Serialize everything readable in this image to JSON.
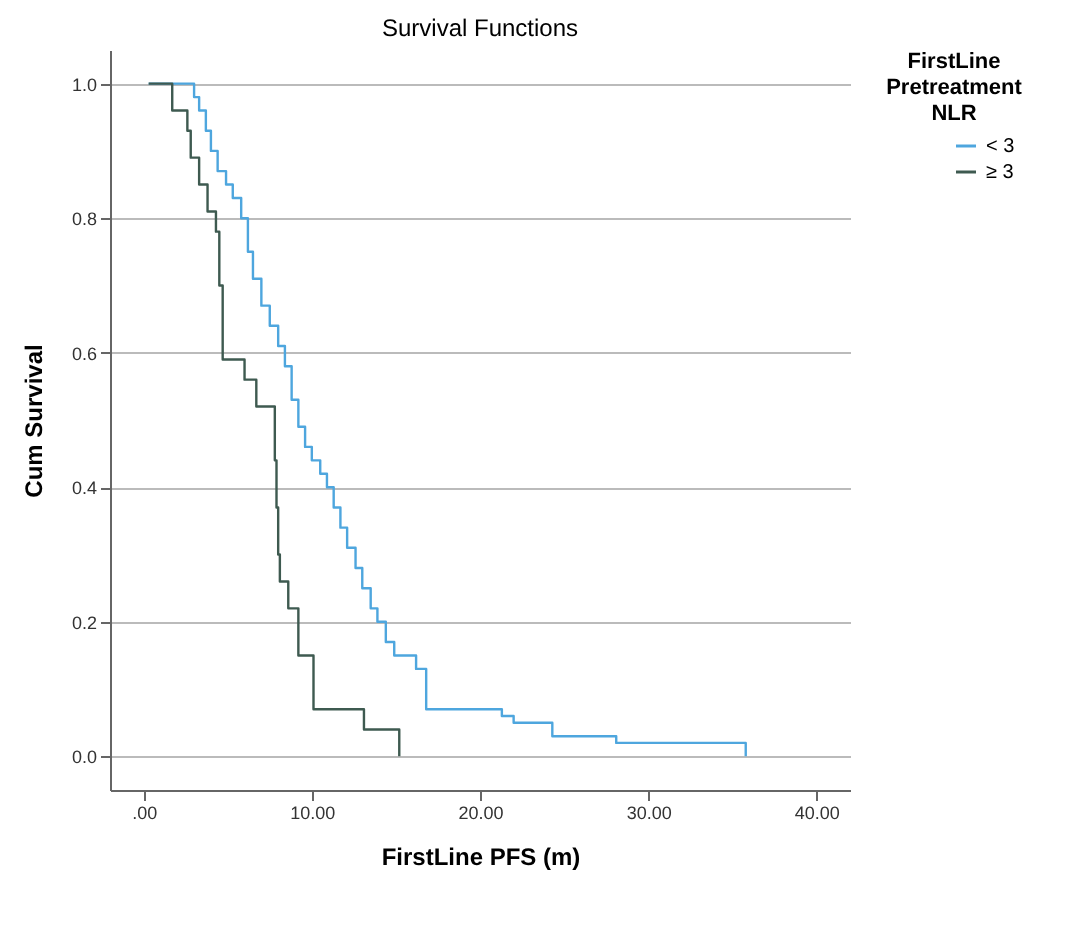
{
  "chart_data": {
    "type": "step",
    "title": "Survival Functions",
    "xlabel": "FirstLine PFS (m)",
    "ylabel": "Cum Survival",
    "legend_title": "FirstLine Pretreatment NLR",
    "xlim": [
      -2,
      42
    ],
    "ylim": [
      -0.05,
      1.05
    ],
    "xticks": [
      {
        "value": 0,
        "label": ".00"
      },
      {
        "value": 10,
        "label": "10.00"
      },
      {
        "value": 20,
        "label": "20.00"
      },
      {
        "value": 30,
        "label": "30.00"
      },
      {
        "value": 40,
        "label": "40.00"
      }
    ],
    "yticks": [
      {
        "value": 0,
        "label": "0.0"
      },
      {
        "value": 0.2,
        "label": "0.2"
      },
      {
        "value": 0.4,
        "label": "0.4"
      },
      {
        "value": 0.6,
        "label": "0.6"
      },
      {
        "value": 0.8,
        "label": "0.8"
      },
      {
        "value": 1,
        "label": "1.0"
      }
    ],
    "grid": "y",
    "legend": "top right",
    "series": [
      {
        "name": "< 3",
        "color": "#4ea6de",
        "x": [
          0.3,
          3.0,
          3.3,
          3.7,
          4.0,
          4.4,
          4.9,
          5.3,
          5.8,
          6.2,
          6.5,
          7.0,
          7.5,
          8.0,
          8.4,
          8.8,
          9.2,
          9.6,
          10.0,
          10.5,
          10.9,
          11.3,
          11.7,
          12.1,
          12.6,
          13.0,
          13.5,
          13.9,
          14.4,
          14.9,
          16.2,
          16.8,
          21.3,
          22.0,
          24.3,
          28.1,
          35.8
        ],
        "values": [
          1.0,
          0.98,
          0.96,
          0.93,
          0.9,
          0.87,
          0.85,
          0.83,
          0.8,
          0.75,
          0.71,
          0.67,
          0.64,
          0.61,
          0.58,
          0.53,
          0.49,
          0.46,
          0.44,
          0.42,
          0.4,
          0.37,
          0.34,
          0.31,
          0.28,
          0.25,
          0.22,
          0.2,
          0.17,
          0.15,
          0.13,
          0.07,
          0.06,
          0.05,
          0.03,
          0.02,
          0.0
        ]
      },
      {
        "name": "≥ 3",
        "color": "#3e5a50",
        "x": [
          0.3,
          1.7,
          2.6,
          2.8,
          3.3,
          3.8,
          4.3,
          4.5,
          4.7,
          6.0,
          6.7,
          7.8,
          7.9,
          8.0,
          8.1,
          8.6,
          9.2,
          10.1,
          13.1,
          15.2
        ],
        "values": [
          1.0,
          0.96,
          0.93,
          0.89,
          0.85,
          0.81,
          0.78,
          0.7,
          0.59,
          0.56,
          0.52,
          0.44,
          0.37,
          0.3,
          0.26,
          0.22,
          0.15,
          0.07,
          0.04,
          0.0
        ]
      }
    ]
  }
}
